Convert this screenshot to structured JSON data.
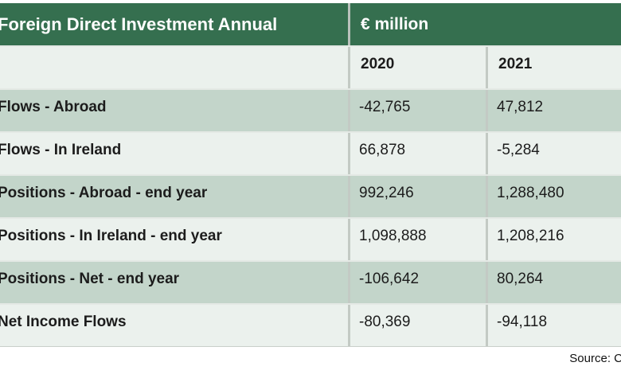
{
  "page": {
    "title_bar": {
      "title": "Foreign Direct Investment Annual",
      "unit": "€ million"
    },
    "columns": {
      "col_2020": "2020",
      "col_2021": "2021"
    },
    "rows": [
      {
        "label": "Flows - Abroad",
        "v2020": "-42,765",
        "v2021": "47,812"
      },
      {
        "label": "Flows - In Ireland",
        "v2020": "66,878",
        "v2021": "-5,284"
      },
      {
        "label": "Positions - Abroad - end year",
        "v2020": "992,246",
        "v2021": "1,288,480"
      },
      {
        "label": "Positions - In Ireland - end year",
        "v2020": "1,098,888",
        "v2021": "1,208,216"
      },
      {
        "label": "Positions - Net - end year",
        "v2020": "-106,642",
        "v2021": "80,264"
      },
      {
        "label": "Net Income Flows",
        "v2020": "-80,369",
        "v2021": "-94,118"
      }
    ],
    "source_note": "Source: C"
  },
  "colors": {
    "header_green": "#356f4f",
    "row_dark": "#c3d5ca",
    "row_light": "#ebf1ed",
    "separator_vertical": "#c3cac4",
    "separator_horizontal": "#e4e9e5",
    "text": "#1c1c1c"
  },
  "chart_data": {
    "type": "table",
    "title": "Foreign Direct Investment Annual",
    "unit": "€ million",
    "columns": [
      "2020",
      "2021"
    ],
    "rows": [
      {
        "label": "Flows - Abroad",
        "values": [
          -42765,
          47812
        ]
      },
      {
        "label": "Flows - In Ireland",
        "values": [
          66878,
          -5284
        ]
      },
      {
        "label": "Positions - Abroad - end year",
        "values": [
          992246,
          1288480
        ]
      },
      {
        "label": "Positions - In Ireland - end year",
        "values": [
          1098888,
          1208216
        ]
      },
      {
        "label": "Positions - Net - end year",
        "values": [
          -106642,
          80264
        ]
      },
      {
        "label": "Net Income Flows",
        "values": [
          -80369,
          -94118
        ]
      }
    ],
    "source": "Source: C"
  }
}
